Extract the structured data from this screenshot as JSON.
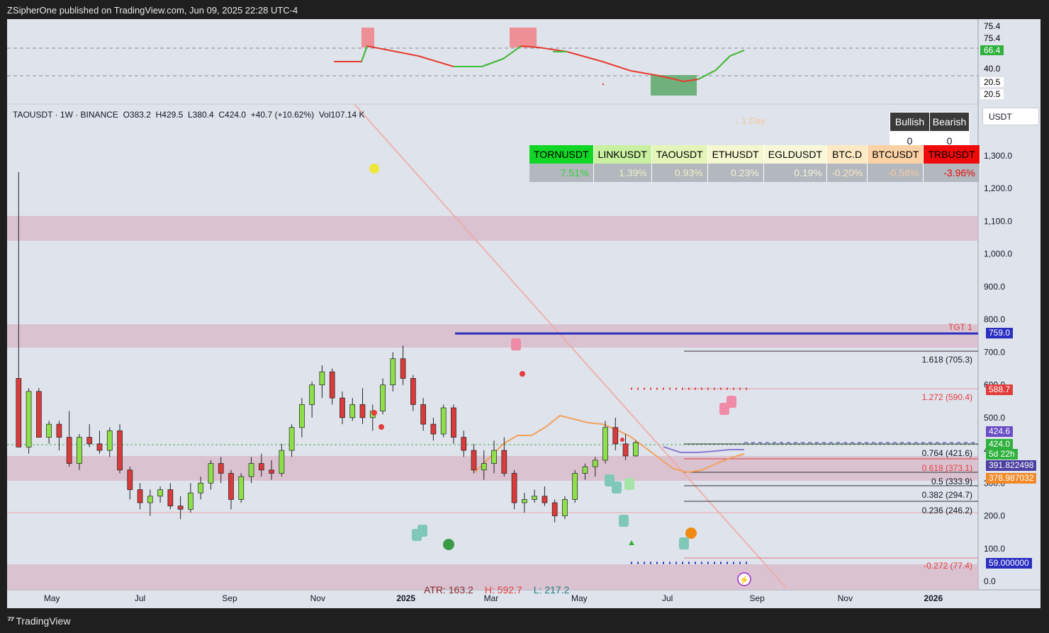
{
  "header": {
    "publisher": "ZSipherOne published on TradingView.com, Jun 09, 2025 22:28 UTC-4"
  },
  "footer": {
    "brand": "TradingView"
  },
  "symbol_info": {
    "text": "TAOUSDT · 1W · BINANCE",
    "open": "O383.2",
    "high": "H429.5",
    "low": "L380.4",
    "close": "C424.0",
    "change": "+40.7 (+10.62%)",
    "vol": "Vol107.14 K"
  },
  "currency": "USDT",
  "day_label": "↓ 1 Day",
  "bull_bear": {
    "bullish_label": "Bullish",
    "bearish_label": "Bearish",
    "bullish_value": "0",
    "bearish_value": "0"
  },
  "performance": [
    {
      "symbol": "TORNUSDT",
      "change": "7.51%",
      "bg": "#11d626",
      "fg": "#000000",
      "pct_color": "#36d43c"
    },
    {
      "symbol": "LINKUSDT",
      "change": "1.39%",
      "bg": "#c8f0a0",
      "fg": "#000000",
      "pct_color": "#e9f2c6"
    },
    {
      "symbol": "TAOUSDT",
      "change": "0.93%",
      "bg": "#e3f5b8",
      "fg": "#000000",
      "pct_color": "#eef2c6"
    },
    {
      "symbol": "ETHUSDT",
      "change": "0.23%",
      "bg": "#f5f7d0",
      "fg": "#000000",
      "pct_color": "#f3f3d6"
    },
    {
      "symbol": "EGLDUSDT",
      "change": "0.19%",
      "bg": "#f8f8d8",
      "fg": "#000000",
      "pct_color": "#f5f5e0"
    },
    {
      "symbol": "BTC.D",
      "change": "-0.20%",
      "bg": "#fde9c4",
      "fg": "#000000",
      "pct_color": "#fae6c4"
    },
    {
      "symbol": "BTCUSDT",
      "change": "-0.56%",
      "bg": "#fbd1a5",
      "fg": "#000000",
      "pct_color": "#f6c9a4"
    },
    {
      "symbol": "TRBUSDT",
      "change": "-3.96%",
      "bg": "#ef0b0b",
      "fg": "#000000",
      "pct_color": "#e60b0b"
    }
  ],
  "stats": {
    "atr": "ATR: 163.2",
    "high": "H: 592.7",
    "low": "L: 217.2"
  },
  "levels": {
    "tgt": "TGT 1",
    "fib_1618": "1.618 (705.3)",
    "fib_1272": "1.272 (590.4)",
    "fib_0764": "0.764 (421.6)",
    "fib_0618": "0.618 (373.1)",
    "fib_05": "0.5 (333.9)",
    "fib_0382": "0.382 (294.7)",
    "fib_0236": "0.236 (246.2)",
    "fib_neg0272": "-0.272 (77.4)"
  },
  "price_tags": {
    "tgt": "759.0",
    "red": "588.7",
    "purple": "424.6",
    "last": "424.0",
    "countdown": "5d 22h",
    "ma1": "391.822498",
    "ma2": "378.987032",
    "low": "59.000000"
  },
  "osc_axis": [
    "75.4",
    "75.4",
    "66.4",
    "40.0",
    "20.5",
    "20.5"
  ],
  "chart_data": {
    "type": "candlestick",
    "title": "TAOUSDT · 1W · BINANCE",
    "y_ticks": [
      "1,300.0",
      "1,200.0",
      "1,100.0",
      "1,000.0",
      "900.0",
      "800.0",
      "700.0",
      "600.0",
      "500.0",
      "400.0",
      "300.0",
      "200.0",
      "100.0",
      "0.0"
    ],
    "y_range": [
      0,
      1300
    ],
    "x_ticks": [
      "May",
      "Jul",
      "Sep",
      "Nov",
      "2025",
      "Mar",
      "May",
      "Jul",
      "Sep",
      "Nov",
      "2026"
    ],
    "x_range": [
      "2024-03-31",
      "2026-02-01"
    ],
    "candles": [
      {
        "date": "2024-04-08",
        "o": 620,
        "h": 1250,
        "l": 420,
        "c": 410
      },
      {
        "date": "2024-04-15",
        "o": 410,
        "h": 590,
        "l": 390,
        "c": 580
      },
      {
        "date": "2024-04-22",
        "o": 580,
        "h": 590,
        "l": 440,
        "c": 440
      },
      {
        "date": "2024-04-29",
        "o": 440,
        "h": 490,
        "l": 420,
        "c": 480
      },
      {
        "date": "2024-05-06",
        "o": 480,
        "h": 490,
        "l": 400,
        "c": 440
      },
      {
        "date": "2024-05-13",
        "o": 440,
        "h": 520,
        "l": 350,
        "c": 360
      },
      {
        "date": "2024-05-20",
        "o": 360,
        "h": 450,
        "l": 340,
        "c": 440
      },
      {
        "date": "2024-05-27",
        "o": 440,
        "h": 480,
        "l": 410,
        "c": 420
      },
      {
        "date": "2024-06-03",
        "o": 420,
        "h": 460,
        "l": 390,
        "c": 400
      },
      {
        "date": "2024-06-10",
        "o": 400,
        "h": 470,
        "l": 380,
        "c": 460
      },
      {
        "date": "2024-06-17",
        "o": 460,
        "h": 480,
        "l": 330,
        "c": 340
      },
      {
        "date": "2024-06-24",
        "o": 340,
        "h": 350,
        "l": 250,
        "c": 280
      },
      {
        "date": "2024-07-01",
        "o": 280,
        "h": 300,
        "l": 220,
        "c": 240
      },
      {
        "date": "2024-07-08",
        "o": 240,
        "h": 280,
        "l": 200,
        "c": 260
      },
      {
        "date": "2024-07-15",
        "o": 260,
        "h": 290,
        "l": 240,
        "c": 280
      },
      {
        "date": "2024-07-22",
        "o": 280,
        "h": 300,
        "l": 220,
        "c": 230
      },
      {
        "date": "2024-07-29",
        "o": 230,
        "h": 260,
        "l": 190,
        "c": 220
      },
      {
        "date": "2024-08-05",
        "o": 220,
        "h": 300,
        "l": 210,
        "c": 270
      },
      {
        "date": "2024-08-12",
        "o": 270,
        "h": 320,
        "l": 250,
        "c": 300
      },
      {
        "date": "2024-08-19",
        "o": 300,
        "h": 370,
        "l": 280,
        "c": 360
      },
      {
        "date": "2024-08-26",
        "o": 360,
        "h": 380,
        "l": 300,
        "c": 330
      },
      {
        "date": "2024-09-02",
        "o": 330,
        "h": 340,
        "l": 220,
        "c": 250
      },
      {
        "date": "2024-09-09",
        "o": 250,
        "h": 330,
        "l": 240,
        "c": 320
      },
      {
        "date": "2024-09-16",
        "o": 320,
        "h": 380,
        "l": 300,
        "c": 360
      },
      {
        "date": "2024-09-23",
        "o": 360,
        "h": 390,
        "l": 320,
        "c": 340
      },
      {
        "date": "2024-09-30",
        "o": 340,
        "h": 370,
        "l": 310,
        "c": 330
      },
      {
        "date": "2024-10-07",
        "o": 330,
        "h": 420,
        "l": 320,
        "c": 400
      },
      {
        "date": "2024-10-14",
        "o": 400,
        "h": 480,
        "l": 380,
        "c": 470
      },
      {
        "date": "2024-10-21",
        "o": 470,
        "h": 560,
        "l": 440,
        "c": 540
      },
      {
        "date": "2024-10-28",
        "o": 540,
        "h": 610,
        "l": 500,
        "c": 600
      },
      {
        "date": "2024-11-04",
        "o": 600,
        "h": 660,
        "l": 560,
        "c": 640
      },
      {
        "date": "2024-11-11",
        "o": 640,
        "h": 650,
        "l": 540,
        "c": 560
      },
      {
        "date": "2024-11-18",
        "o": 560,
        "h": 580,
        "l": 480,
        "c": 500
      },
      {
        "date": "2024-11-25",
        "o": 500,
        "h": 560,
        "l": 490,
        "c": 540
      },
      {
        "date": "2024-12-02",
        "o": 540,
        "h": 590,
        "l": 480,
        "c": 500
      },
      {
        "date": "2024-12-09",
        "o": 500,
        "h": 540,
        "l": 460,
        "c": 520
      },
      {
        "date": "2024-12-16",
        "o": 520,
        "h": 620,
        "l": 510,
        "c": 600
      },
      {
        "date": "2024-12-23",
        "o": 600,
        "h": 700,
        "l": 580,
        "c": 680
      },
      {
        "date": "2024-12-30",
        "o": 680,
        "h": 720,
        "l": 600,
        "c": 620
      },
      {
        "date": "2025-01-06",
        "o": 620,
        "h": 630,
        "l": 520,
        "c": 540
      },
      {
        "date": "2025-01-13",
        "o": 540,
        "h": 560,
        "l": 460,
        "c": 480
      },
      {
        "date": "2025-01-20",
        "o": 480,
        "h": 500,
        "l": 430,
        "c": 450
      },
      {
        "date": "2025-01-27",
        "o": 450,
        "h": 540,
        "l": 440,
        "c": 530
      },
      {
        "date": "2025-02-03",
        "o": 530,
        "h": 540,
        "l": 420,
        "c": 440
      },
      {
        "date": "2025-02-10",
        "o": 440,
        "h": 460,
        "l": 380,
        "c": 400
      },
      {
        "date": "2025-02-17",
        "o": 400,
        "h": 420,
        "l": 330,
        "c": 340
      },
      {
        "date": "2025-02-24",
        "o": 340,
        "h": 400,
        "l": 310,
        "c": 360
      },
      {
        "date": "2025-03-03",
        "o": 360,
        "h": 430,
        "l": 330,
        "c": 400
      },
      {
        "date": "2025-03-10",
        "o": 400,
        "h": 440,
        "l": 320,
        "c": 330
      },
      {
        "date": "2025-03-17",
        "o": 330,
        "h": 340,
        "l": 220,
        "c": 240
      },
      {
        "date": "2025-03-24",
        "o": 240,
        "h": 270,
        "l": 210,
        "c": 250
      },
      {
        "date": "2025-03-31",
        "o": 250,
        "h": 280,
        "l": 240,
        "c": 260
      },
      {
        "date": "2025-04-07",
        "o": 260,
        "h": 290,
        "l": 230,
        "c": 240
      },
      {
        "date": "2025-04-14",
        "o": 240,
        "h": 250,
        "l": 180,
        "c": 200
      },
      {
        "date": "2025-04-21",
        "o": 200,
        "h": 260,
        "l": 190,
        "c": 250
      },
      {
        "date": "2025-04-28",
        "o": 250,
        "h": 340,
        "l": 240,
        "c": 330
      },
      {
        "date": "2025-05-05",
        "o": 330,
        "h": 360,
        "l": 310,
        "c": 350
      },
      {
        "date": "2025-05-12",
        "o": 350,
        "h": 380,
        "l": 320,
        "c": 370
      },
      {
        "date": "2025-05-19",
        "o": 370,
        "h": 490,
        "l": 360,
        "c": 470
      },
      {
        "date": "2025-05-26",
        "o": 470,
        "h": 500,
        "l": 400,
        "c": 420
      },
      {
        "date": "2025-06-02",
        "o": 420,
        "h": 450,
        "l": 370,
        "c": 383
      },
      {
        "date": "2025-06-09",
        "o": 383.2,
        "h": 429.5,
        "l": 380.4,
        "c": 424.0
      }
    ]
  }
}
